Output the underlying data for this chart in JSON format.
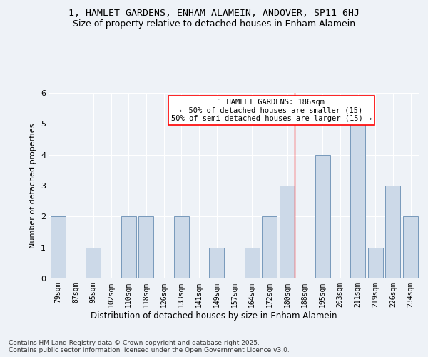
{
  "title1": "1, HAMLET GARDENS, ENHAM ALAMEIN, ANDOVER, SP11 6HJ",
  "title2": "Size of property relative to detached houses in Enham Alamein",
  "xlabel": "Distribution of detached houses by size in Enham Alamein",
  "ylabel": "Number of detached properties",
  "footnote": "Contains HM Land Registry data © Crown copyright and database right 2025.\nContains public sector information licensed under the Open Government Licence v3.0.",
  "categories": [
    "79sqm",
    "87sqm",
    "95sqm",
    "102sqm",
    "110sqm",
    "118sqm",
    "126sqm",
    "133sqm",
    "141sqm",
    "149sqm",
    "157sqm",
    "164sqm",
    "172sqm",
    "180sqm",
    "188sqm",
    "195sqm",
    "203sqm",
    "211sqm",
    "219sqm",
    "226sqm",
    "234sqm"
  ],
  "values": [
    2,
    0,
    1,
    0,
    2,
    2,
    0,
    2,
    0,
    1,
    0,
    1,
    2,
    3,
    0,
    4,
    0,
    5,
    1,
    3,
    2
  ],
  "bar_color": "#ccd9e8",
  "bar_edge_color": "#7799bb",
  "highlight_line_index": 13,
  "annotation_line1": "1 HAMLET GARDENS: 186sqm",
  "annotation_line2": "← 50% of detached houses are smaller (15)",
  "annotation_line3": "50% of semi-detached houses are larger (15) →",
  "ylim": [
    0,
    6
  ],
  "yticks": [
    0,
    1,
    2,
    3,
    4,
    5,
    6
  ],
  "bg_color": "#eef2f7",
  "plot_bg_color": "#eef2f7",
  "grid_color": "#ffffff",
  "title1_fontsize": 9.5,
  "title2_fontsize": 9,
  "xlabel_fontsize": 8.5,
  "ylabel_fontsize": 8,
  "tick_fontsize": 7,
  "ytick_fontsize": 8,
  "footnote_fontsize": 6.5,
  "ann_fontsize": 7.5
}
